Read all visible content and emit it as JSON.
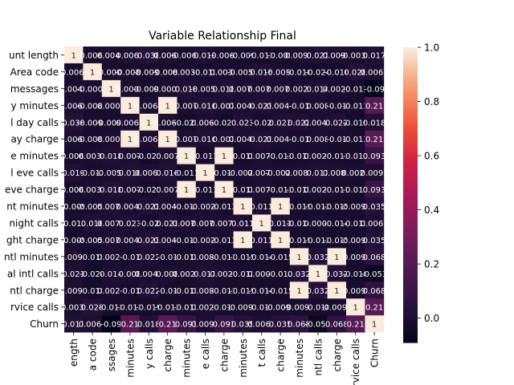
{
  "chart_data": {
    "type": "heatmap",
    "title": "Variable Relationship Final",
    "row_labels_visible": [
      "unt length",
      "Area code",
      "messages",
      "y minutes",
      "l day calls",
      "ay charge",
      "e minutes",
      "l eve calls",
      "eve charge",
      "nt minutes",
      "night calls",
      "ght charge",
      "ntl minutes",
      "al intl calls",
      "ntl charge",
      "rvice calls",
      "Churn"
    ],
    "col_labels_visible": [
      "ength",
      "a code",
      "ssages",
      "minutes",
      "y calls",
      "charge",
      "minutes",
      "e calls",
      "charge",
      "minutes",
      "t calls",
      "charge",
      "minutes",
      "ntl calls",
      "charge",
      "rvice calls",
      "Churn"
    ],
    "values": [
      [
        1,
        -0.0068,
        0.0046,
        0.0062,
        0.038,
        0.0062,
        -0.0068,
        0.019,
        -0.0067,
        -0.009,
        -0.013,
        -0.009,
        0.0095,
        0.021,
        0.0095,
        -0.0038,
        0.017
      ],
      [
        -0.0068,
        1,
        -0.0009,
        -0.0083,
        -0.0096,
        -0.0083,
        0.0036,
        -0.012,
        0.0036,
        -0.0058,
        0.016,
        -0.0058,
        -0.018,
        -0.024,
        -0.018,
        0.028,
        0.0062
      ],
      [
        0.0046,
        -0.0009,
        1,
        0.0008,
        -0.0095,
        0.0008,
        0.018,
        -0.0059,
        0.018,
        0.0077,
        0.0071,
        0.0077,
        0.0029,
        0.014,
        0.0029,
        -0.013,
        -0.09
      ],
      [
        0.0062,
        -0.0083,
        0.0008,
        1,
        0.0068,
        1,
        0.007,
        0.016,
        0.007,
        0.0043,
        0.023,
        0.0043,
        -0.01,
        0.008,
        -0.01,
        -0.013,
        0.21
      ],
      [
        0.038,
        -0.0096,
        -0.0095,
        0.0068,
        1,
        0.0068,
        -0.021,
        0.0065,
        -0.021,
        0.023,
        -0.02,
        0.023,
        0.022,
        0.0046,
        0.022,
        -0.019,
        0.018
      ],
      [
        0.0062,
        -0.0083,
        0.0008,
        1,
        0.0068,
        1,
        0.007,
        0.016,
        0.007,
        0.0043,
        0.023,
        0.0043,
        -0.01,
        0.008,
        -0.01,
        -0.013,
        0.21
      ],
      [
        -0.0068,
        0.0036,
        0.018,
        0.007,
        -0.021,
        0.007,
        1,
        -0.011,
        1,
        -0.013,
        0.0076,
        -0.013,
        -0.011,
        0.0025,
        -0.011,
        -0.013,
        0.093
      ],
      [
        0.019,
        -0.012,
        -0.0059,
        0.016,
        0.0065,
        0.016,
        -0.011,
        1,
        -0.011,
        -0.0021,
        0.0077,
        -0.0021,
        0.0087,
        0.017,
        0.0087,
        0.0024,
        0.0092
      ],
      [
        -0.0067,
        0.0036,
        0.018,
        0.007,
        -0.021,
        0.007,
        1,
        -0.011,
        1,
        -0.013,
        0.0076,
        -0.013,
        -0.011,
        0.0025,
        -0.011,
        -0.013,
        0.093
      ],
      [
        -0.009,
        -0.0058,
        0.0077,
        0.0043,
        0.023,
        0.0043,
        -0.013,
        -0.0021,
        -0.013,
        1,
        0.011,
        1,
        -0.015,
        -0.012,
        -0.015,
        -0.0093,
        0.035
      ],
      [
        -0.013,
        0.016,
        0.0071,
        0.023,
        -0.02,
        0.023,
        0.0076,
        0.0077,
        0.0076,
        0.011,
        1,
        0.011,
        -0.014,
        0.0003,
        -0.014,
        -0.013,
        0.0061
      ],
      [
        -0.009,
        -0.0058,
        0.0077,
        0.0043,
        0.023,
        0.0043,
        -0.013,
        -0.0021,
        -0.013,
        1,
        0.011,
        1,
        -0.015,
        -0.012,
        -0.015,
        -0.0093,
        0.035
      ],
      [
        0.0095,
        -0.018,
        0.0029,
        -0.01,
        0.022,
        -0.01,
        -0.011,
        0.0087,
        -0.011,
        -0.015,
        -0.014,
        -0.015,
        1,
        0.032,
        1,
        -0.0096,
        0.068
      ],
      [
        0.021,
        -0.024,
        0.014,
        0.008,
        0.0046,
        0.008,
        0.0025,
        0.017,
        0.0025,
        -0.012,
        0.0003,
        -0.012,
        0.032,
        1,
        0.032,
        -0.018,
        -0.053
      ],
      [
        0.0095,
        -0.018,
        0.0029,
        -0.01,
        0.022,
        -0.01,
        -0.011,
        0.0087,
        -0.011,
        -0.015,
        -0.014,
        -0.015,
        1,
        0.032,
        1,
        -0.0097,
        0.068
      ],
      [
        -0.0038,
        0.028,
        -0.013,
        -0.013,
        -0.019,
        -0.013,
        -0.013,
        0.0024,
        -0.013,
        -0.0093,
        -0.013,
        -0.0093,
        -0.0096,
        -0.018,
        -0.0097,
        1,
        0.21
      ],
      [
        0.017,
        0.0062,
        -0.09,
        0.21,
        0.018,
        0.21,
        0.093,
        0.0092,
        0.093,
        0.035,
        0.0061,
        0.035,
        0.068,
        -0.053,
        0.068,
        0.21,
        1
      ]
    ],
    "cell_text": [
      [
        "1",
        "-0.0068",
        "0.0046",
        "0.0062",
        "0.038",
        "0.0062",
        "-0.0068",
        "0.019",
        "-0.0067",
        "-0.009",
        "-0.013",
        "-0.009",
        "0.0095",
        "0.021",
        "0.0095",
        "-0.0038",
        "0.017"
      ],
      [
        "-0.0068",
        "1",
        "-0.0009",
        "-0.0083",
        "-0.0096",
        "-0.0083",
        "0.0036",
        "-0.012",
        "0.0036",
        "-0.0058",
        "0.016",
        "-0.0058",
        "-0.018",
        "-0.024",
        "-0.018",
        "0.028",
        "0.0062"
      ],
      [
        "0.0046",
        "-0.0009",
        "1",
        "0.0008",
        "-0.0095",
        "0.0008",
        "0.018",
        "-0.0059",
        "0.018",
        "0.0077",
        "0.0071",
        "0.0077",
        "0.0029",
        "0.014",
        "0.0029",
        "-0.013",
        "-0.09"
      ],
      [
        "0.0062",
        "-0.0083",
        "0.0008",
        "1",
        "0.0068",
        "1",
        "0.007",
        "0.016",
        "0.007",
        "0.0043",
        "0.023",
        "0.0043",
        "-0.01",
        "0.008",
        "-0.01",
        "-0.013",
        "0.21"
      ],
      [
        "0.038",
        "-0.0096",
        "-0.0095",
        "0.0068",
        "1",
        "0.0068",
        "-0.021",
        "0.0065",
        "-0.021",
        "0.023",
        "-0.02",
        "0.023",
        "0.022",
        "0.0046",
        "0.022",
        "-0.019",
        "0.018"
      ],
      [
        "0.0062",
        "-0.0083",
        "0.0008",
        "1",
        "0.0068",
        "1",
        "0.007",
        "0.016",
        "0.007",
        "0.0043",
        "0.023",
        "0.0043",
        "-0.01",
        "0.008",
        "-0.01",
        "-0.013",
        "0.21"
      ],
      [
        "-0.0068",
        "0.0036",
        "0.018",
        "0.007",
        "-0.021",
        "0.007",
        "1",
        "-0.011",
        "1",
        "-0.013",
        "0.0076",
        "-0.013",
        "-0.011",
        "0.0025",
        "-0.011",
        "-0.013",
        "0.093"
      ],
      [
        "0.019",
        "-0.012",
        "-0.0059",
        "0.016",
        "0.0065",
        "0.016",
        "-0.011",
        "1",
        "-0.011",
        "-0.0021",
        "0.0077",
        "-0.0021",
        "0.0087",
        "0.017",
        "0.0087",
        "0.0024",
        "0.0092"
      ],
      [
        "-0.0067",
        "0.0036",
        "0.018",
        "0.007",
        "-0.021",
        "0.007",
        "1",
        "-0.011",
        "1",
        "-0.013",
        "0.0076",
        "-0.013",
        "-0.011",
        "0.0025",
        "-0.011",
        "-0.013",
        "0.093"
      ],
      [
        "-0.009",
        "-0.0058",
        "0.0077",
        "0.0043",
        "0.023",
        "0.0043",
        "-0.013",
        "-0.0021",
        "-0.013",
        "1",
        "0.011",
        "1",
        "-0.015",
        "-0.012",
        "-0.015",
        "-0.0093",
        "0.035"
      ],
      [
        "-0.013",
        "0.016",
        "0.0071",
        "0.023",
        "-0.02",
        "0.023",
        "0.0076",
        "0.0077",
        "0.0076",
        "0.011",
        "1",
        "0.011",
        "-0.014",
        "0.0003",
        "-0.014",
        "-0.013",
        "0.0061"
      ],
      [
        "-0.009",
        "-0.0058",
        "0.0077",
        "0.0043",
        "0.023",
        "0.0043",
        "-0.013",
        "-0.0021",
        "-0.013",
        "1",
        "0.011",
        "1",
        "-0.015",
        "-0.012",
        "-0.015",
        "-0.0093",
        "0.035"
      ],
      [
        "0.0095",
        "-0.018",
        "0.0029",
        "-0.01",
        "0.022",
        "-0.01",
        "-0.011",
        "0.0087",
        "-0.011",
        "-0.015",
        "-0.014",
        "-0.015",
        "1",
        "0.032",
        "1",
        "-0.0096",
        "0.068"
      ],
      [
        "0.021",
        "-0.024",
        "0.014",
        "0.008",
        "0.0046",
        "0.008",
        "0.0025",
        "0.017",
        "0.0025",
        "-0.012",
        "0.0003",
        "-0.012",
        "0.032",
        "1",
        "0.032",
        "-0.018",
        "-0.053"
      ],
      [
        "0.0095",
        "-0.018",
        "0.0029",
        "-0.01",
        "0.022",
        "-0.01",
        "-0.011",
        "0.0087",
        "-0.011",
        "-0.015",
        "-0.014",
        "-0.015",
        "1",
        "0.032",
        "1",
        "-0.0097",
        "0.068"
      ],
      [
        "-0.0038",
        "0.028",
        "-0.013",
        "-0.013",
        "-0.019",
        "-0.013",
        "-0.013",
        "0.0024",
        "-0.013",
        "-0.0093",
        "-0.013",
        "-0.0093",
        "-0.0096",
        "-0.018",
        "-0.0097",
        "1",
        "0.21"
      ],
      [
        "0.017",
        "0.0062",
        "-0.09",
        "0.21",
        "0.018",
        "0.21",
        "0.093",
        "0.0092",
        "0.093",
        "0.035",
        "0.0061",
        "0.035",
        "0.068",
        "-0.053",
        "0.068",
        "0.21",
        "1"
      ]
    ],
    "color_range": [
      -0.09,
      1
    ],
    "colorbar_ticks": [
      "0.0",
      "0.2",
      "0.4",
      "0.6",
      "0.8",
      "1.0"
    ],
    "colorbar_tick_values": [
      0,
      0.2,
      0.4,
      0.6,
      0.8,
      1.0
    ],
    "colormap": "rocket",
    "grid": false,
    "legend": "colorbar-right"
  }
}
